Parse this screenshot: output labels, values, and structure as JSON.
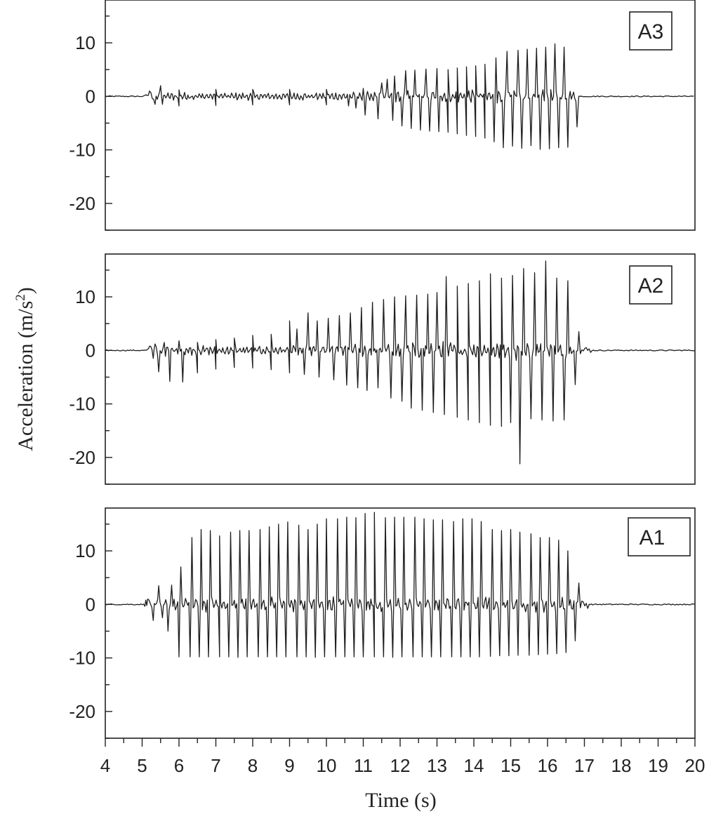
{
  "chart_data": {
    "type": "line",
    "xlabel": "Time (s)",
    "ylabel": {
      "main": "Acceleration (m/s",
      "sup": "2",
      "close": ")"
    },
    "xlim": [
      4,
      20
    ],
    "ylim": [
      -25,
      18
    ],
    "x_ticks": [
      4,
      5,
      6,
      7,
      8,
      9,
      10,
      11,
      12,
      13,
      14,
      15,
      16,
      17,
      18,
      19,
      20
    ],
    "y_ticks": [
      10,
      0,
      -10,
      -20
    ],
    "y_tick_labels": [
      "10",
      "0",
      "-10",
      "-20"
    ],
    "panels": [
      {
        "label": "A3",
        "series_name": "A3",
        "activity_window": [
          5.05,
          16.85
        ],
        "baseline_noise": 0.2,
        "points": [
          [
            5.1,
            0.3
          ],
          [
            5.35,
            -1.5
          ],
          [
            5.55,
            -1.5
          ],
          [
            6.0,
            -1.8
          ],
          [
            7.0,
            -1.7
          ],
          [
            8.0,
            -1.6
          ],
          [
            9.0,
            -1.6
          ],
          [
            10.0,
            -1.6
          ],
          [
            10.6,
            -1.8
          ],
          [
            10.8,
            -2.2
          ],
          [
            11.05,
            -3.5
          ],
          [
            11.4,
            -4.2
          ],
          [
            11.8,
            -4.5
          ],
          [
            12.05,
            -5.5
          ],
          [
            12.3,
            -6.0
          ],
          [
            12.55,
            -6.3
          ],
          [
            12.8,
            -6.5
          ],
          [
            13.05,
            -6.6
          ],
          [
            13.3,
            -6.7
          ],
          [
            13.55,
            -7.0
          ],
          [
            13.8,
            -7.3
          ],
          [
            14.05,
            -7.5
          ],
          [
            14.3,
            -7.8
          ],
          [
            14.55,
            -8.5
          ],
          [
            14.8,
            -9.6
          ],
          [
            15.05,
            -9.3
          ],
          [
            15.3,
            -9.7
          ],
          [
            15.55,
            -9.2
          ],
          [
            15.8,
            -9.9
          ],
          [
            16.05,
            -9.8
          ],
          [
            16.3,
            -9.6
          ],
          [
            16.55,
            -9.5
          ],
          [
            16.8,
            -5.7
          ]
        ],
        "positive_peaks": [
          [
            5.2,
            1.0
          ],
          [
            5.5,
            2.0
          ],
          [
            6.0,
            1.2
          ],
          [
            7.0,
            1.3
          ],
          [
            8.0,
            1.3
          ],
          [
            9.0,
            1.3
          ],
          [
            10.0,
            1.3
          ],
          [
            11.0,
            1.5
          ],
          [
            11.5,
            2.5
          ],
          [
            11.65,
            3.2
          ],
          [
            11.85,
            3.8
          ],
          [
            12.15,
            4.8
          ],
          [
            12.4,
            4.9
          ],
          [
            12.7,
            5.1
          ],
          [
            13.0,
            5.2
          ],
          [
            13.3,
            5.0
          ],
          [
            13.55,
            5.3
          ],
          [
            13.8,
            5.5
          ],
          [
            14.05,
            5.7
          ],
          [
            14.3,
            6.0
          ],
          [
            14.6,
            7.2
          ],
          [
            14.9,
            8.4
          ],
          [
            15.2,
            8.6
          ],
          [
            15.45,
            8.8
          ],
          [
            15.7,
            9.0
          ],
          [
            15.95,
            9.2
          ],
          [
            16.2,
            9.8
          ],
          [
            16.45,
            9.2
          ]
        ]
      },
      {
        "label": "A2",
        "series_name": "A2",
        "activity_window": [
          5.15,
          17.2
        ],
        "baseline_noise": 0.2,
        "points": [
          [
            5.2,
            0.8
          ],
          [
            5.3,
            -1.5
          ],
          [
            5.45,
            -4.0
          ],
          [
            5.75,
            -5.8
          ],
          [
            6.1,
            -5.9
          ],
          [
            6.5,
            -4.2
          ],
          [
            7.0,
            -3.5
          ],
          [
            7.5,
            -3.2
          ],
          [
            8.0,
            -3.3
          ],
          [
            8.5,
            -3.6
          ],
          [
            9.0,
            -4.2
          ],
          [
            9.4,
            -4.5
          ],
          [
            9.8,
            -5.0
          ],
          [
            10.2,
            -5.5
          ],
          [
            10.55,
            -6.5
          ],
          [
            10.85,
            -7.0
          ],
          [
            11.1,
            -7.5
          ],
          [
            11.4,
            -7.0
          ],
          [
            11.75,
            -8.9
          ],
          [
            12.05,
            -9.5
          ],
          [
            12.3,
            -10.8
          ],
          [
            12.6,
            -11.2
          ],
          [
            12.9,
            -11.6
          ],
          [
            13.2,
            -12.0
          ],
          [
            13.55,
            -12.5
          ],
          [
            13.85,
            -13.0
          ],
          [
            14.15,
            -13.5
          ],
          [
            14.45,
            -14.0
          ],
          [
            14.75,
            -14.2
          ],
          [
            15.0,
            -13.5
          ],
          [
            15.25,
            -21.2
          ],
          [
            15.55,
            -12.8
          ],
          [
            15.85,
            -13.0
          ],
          [
            16.15,
            -13.2
          ],
          [
            16.45,
            -13.0
          ],
          [
            16.75,
            -6.4
          ]
        ],
        "positive_peaks": [
          [
            5.35,
            1.2
          ],
          [
            5.6,
            1.5
          ],
          [
            6.0,
            1.8
          ],
          [
            6.5,
            1.5
          ],
          [
            7.0,
            2.0
          ],
          [
            7.5,
            2.3
          ],
          [
            8.0,
            2.8
          ],
          [
            8.5,
            3.0
          ],
          [
            9.0,
            5.5
          ],
          [
            9.2,
            4.0
          ],
          [
            9.5,
            7.0
          ],
          [
            9.75,
            5.5
          ],
          [
            10.05,
            6.0
          ],
          [
            10.35,
            6.5
          ],
          [
            10.65,
            7.0
          ],
          [
            10.95,
            8.0
          ],
          [
            11.25,
            9.0
          ],
          [
            11.55,
            9.5
          ],
          [
            11.85,
            10.0
          ],
          [
            12.15,
            10.2
          ],
          [
            12.45,
            10.3
          ],
          [
            12.75,
            10.5
          ],
          [
            13.0,
            10.8
          ],
          [
            13.25,
            13.8
          ],
          [
            13.55,
            12.0
          ],
          [
            13.85,
            12.5
          ],
          [
            14.15,
            13.0
          ],
          [
            14.45,
            14.3
          ],
          [
            14.75,
            13.5
          ],
          [
            15.05,
            14.0
          ],
          [
            15.35,
            15.3
          ],
          [
            15.65,
            14.5
          ],
          [
            15.95,
            16.7
          ],
          [
            16.25,
            13.5
          ],
          [
            16.55,
            13.0
          ],
          [
            16.85,
            3.5
          ]
        ]
      },
      {
        "label": "A1",
        "series_name": "A1",
        "activity_window": [
          5.05,
          17.15
        ],
        "baseline_noise": 0.2,
        "points": [
          [
            5.15,
            1.0
          ],
          [
            5.3,
            -3.0
          ],
          [
            5.55,
            -2.5
          ],
          [
            5.7,
            -5.0
          ],
          [
            6.0,
            -9.8
          ],
          [
            6.3,
            -9.8
          ],
          [
            6.55,
            -9.8
          ],
          [
            6.8,
            -9.8
          ],
          [
            7.1,
            -9.8
          ],
          [
            7.35,
            -9.8
          ],
          [
            7.6,
            -9.9
          ],
          [
            7.85,
            -9.8
          ],
          [
            8.15,
            -9.8
          ],
          [
            8.4,
            -9.8
          ],
          [
            8.65,
            -9.8
          ],
          [
            8.9,
            -9.8
          ],
          [
            9.2,
            -9.8
          ],
          [
            9.45,
            -9.8
          ],
          [
            9.7,
            -9.9
          ],
          [
            9.95,
            -9.8
          ],
          [
            10.25,
            -9.8
          ],
          [
            10.5,
            -9.8
          ],
          [
            10.75,
            -9.8
          ],
          [
            11.0,
            -9.8
          ],
          [
            11.3,
            -9.8
          ],
          [
            11.55,
            -9.8
          ],
          [
            11.8,
            -9.9
          ],
          [
            12.05,
            -9.8
          ],
          [
            12.35,
            -9.8
          ],
          [
            12.6,
            -9.8
          ],
          [
            12.85,
            -9.8
          ],
          [
            13.1,
            -9.8
          ],
          [
            13.4,
            -9.8
          ],
          [
            13.65,
            -9.8
          ],
          [
            13.9,
            -9.8
          ],
          [
            14.15,
            -9.8
          ],
          [
            14.45,
            -9.7
          ],
          [
            14.7,
            -9.6
          ],
          [
            14.95,
            -9.6
          ],
          [
            15.2,
            -9.5
          ],
          [
            15.5,
            -9.5
          ],
          [
            15.75,
            -9.4
          ],
          [
            16.0,
            -9.3
          ],
          [
            16.25,
            -9.2
          ],
          [
            16.5,
            -9.0
          ],
          [
            16.75,
            -6.8
          ]
        ],
        "positive_peaks": [
          [
            5.1,
            0.8
          ],
          [
            5.45,
            3.5
          ],
          [
            5.8,
            3.6
          ],
          [
            6.05,
            7.0
          ],
          [
            6.35,
            12.5
          ],
          [
            6.6,
            14.0
          ],
          [
            6.85,
            13.8
          ],
          [
            7.1,
            12.8
          ],
          [
            7.4,
            13.5
          ],
          [
            7.65,
            13.8
          ],
          [
            7.9,
            13.8
          ],
          [
            8.2,
            14.0
          ],
          [
            8.45,
            14.5
          ],
          [
            8.7,
            15.0
          ],
          [
            8.95,
            15.4
          ],
          [
            9.25,
            14.8
          ],
          [
            9.5,
            14.0
          ],
          [
            9.75,
            15.0
          ],
          [
            10.0,
            16.0
          ],
          [
            10.3,
            16.0
          ],
          [
            10.55,
            16.3
          ],
          [
            10.8,
            16.2
          ],
          [
            11.05,
            17.0
          ],
          [
            11.3,
            17.2
          ],
          [
            11.6,
            16.2
          ],
          [
            11.85,
            16.3
          ],
          [
            12.1,
            16.3
          ],
          [
            12.4,
            16.3
          ],
          [
            12.65,
            16.0
          ],
          [
            12.9,
            15.8
          ],
          [
            13.15,
            15.8
          ],
          [
            13.45,
            15.5
          ],
          [
            13.7,
            16.0
          ],
          [
            13.95,
            16.0
          ],
          [
            14.2,
            15.5
          ],
          [
            14.5,
            14.0
          ],
          [
            14.75,
            13.8
          ],
          [
            15.0,
            14.0
          ],
          [
            15.25,
            13.5
          ],
          [
            15.55,
            13.2
          ],
          [
            15.8,
            12.5
          ],
          [
            16.05,
            12.5
          ],
          [
            16.3,
            12.0
          ],
          [
            16.55,
            10.0
          ],
          [
            16.85,
            4.0
          ]
        ]
      }
    ]
  }
}
